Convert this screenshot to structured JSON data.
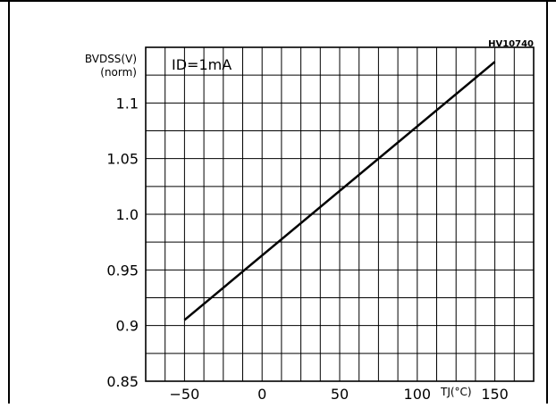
{
  "chart_data": {
    "type": "line",
    "code": "HV10740",
    "condition": "ID=1mA",
    "ylabel": "BVDSS(V)",
    "ylabel_sub": "(norm)",
    "xlabel": "TJ(°C)",
    "xlim": [
      -75,
      175
    ],
    "ylim": [
      0.85,
      1.15
    ],
    "x_ticks": [
      -50,
      0,
      50,
      100,
      150
    ],
    "y_ticks": [
      0.85,
      0.9,
      0.95,
      1.0,
      1.05,
      1.1
    ],
    "x_tick_labels": [
      "−50",
      "0",
      "50",
      "100",
      "150"
    ],
    "y_tick_labels": [
      "0.85",
      "0.9",
      "0.95",
      "1.0",
      "1.05",
      "1.1"
    ],
    "grid": true,
    "series": [
      {
        "x": [
          -50,
          150
        ],
        "y": [
          0.905,
          1.137
        ]
      }
    ]
  }
}
